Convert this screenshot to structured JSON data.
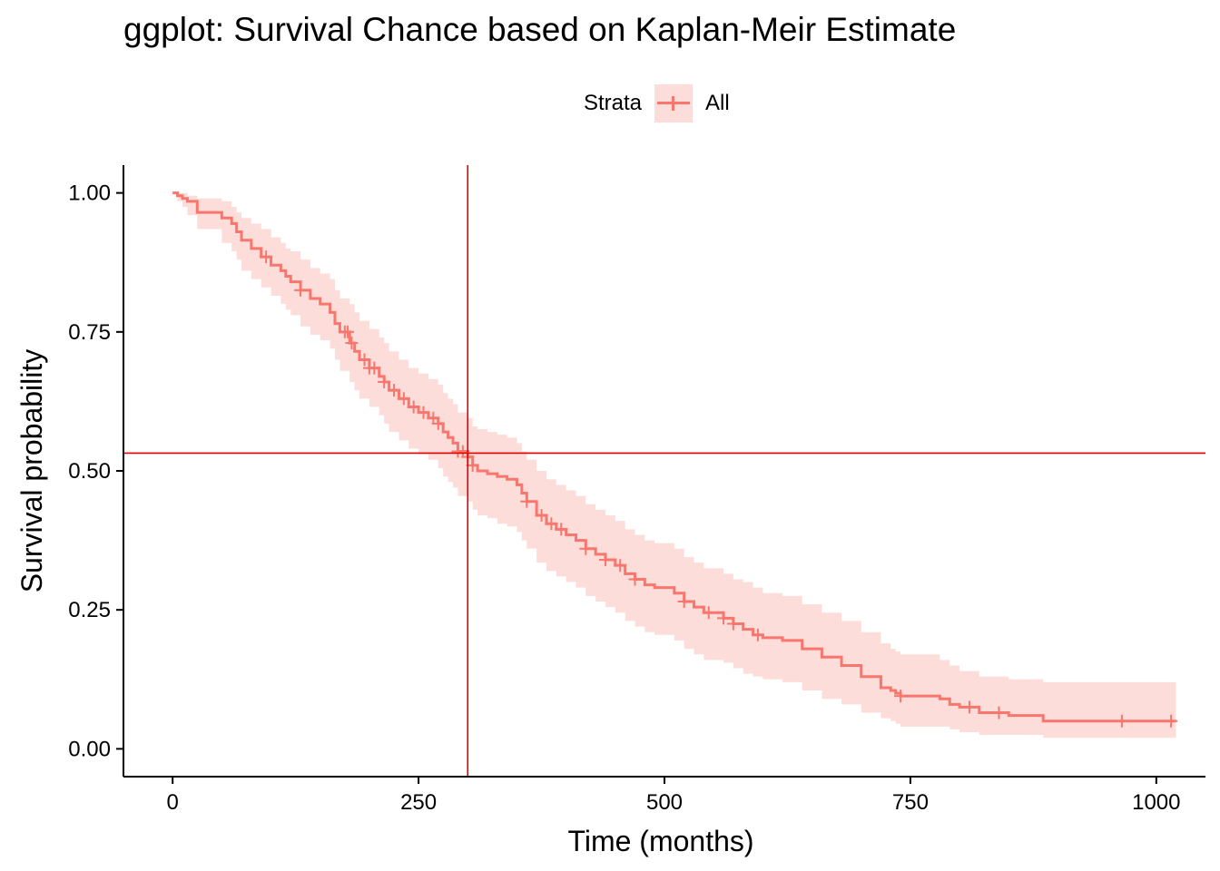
{
  "chart_data": {
    "type": "line",
    "subtype": "step",
    "title": "ggplot: Survival Chance based on Kaplan-Meir Estimate",
    "xlabel": "Time (months)",
    "ylabel": "Survival probability",
    "xlim": [
      -50,
      1050
    ],
    "ylim": [
      -0.05,
      1.05
    ],
    "x_ticks": [
      0,
      250,
      500,
      750,
      1000
    ],
    "x_tick_labels": [
      "0",
      "250",
      "500",
      "750",
      "1000"
    ],
    "y_ticks": [
      0,
      0.25,
      0.5,
      0.75,
      1.0
    ],
    "y_tick_labels": [
      "0.00",
      "0.25",
      "0.50",
      "0.75",
      "1.00"
    ],
    "grid": false,
    "legend": {
      "title": "Strata",
      "position": "top",
      "entries": [
        "All"
      ]
    },
    "colors": {
      "series": "#F8766D",
      "ribbon": "#F8766D40",
      "reference": "#E00000"
    },
    "series": [
      {
        "name": "All",
        "x": [
          0,
          5,
          10,
          15,
          25,
          50,
          60,
          65,
          70,
          80,
          90,
          100,
          110,
          115,
          120,
          130,
          140,
          150,
          160,
          165,
          170,
          180,
          185,
          190,
          200,
          210,
          215,
          220,
          230,
          240,
          250,
          260,
          270,
          275,
          280,
          285,
          290,
          300,
          305,
          310,
          320,
          330,
          340,
          350,
          355,
          360,
          370,
          380,
          390,
          400,
          410,
          420,
          430,
          440,
          450,
          460,
          470,
          480,
          490,
          500,
          510,
          520,
          530,
          540,
          560,
          570,
          580,
          590,
          600,
          620,
          640,
          660,
          680,
          700,
          720,
          730,
          735,
          740,
          780,
          790,
          800,
          820,
          850,
          880,
          885,
          900,
          950,
          1000,
          1020
        ],
        "y": [
          1.0,
          0.995,
          0.99,
          0.985,
          0.965,
          0.955,
          0.945,
          0.93,
          0.915,
          0.9,
          0.885,
          0.87,
          0.86,
          0.85,
          0.84,
          0.825,
          0.81,
          0.8,
          0.785,
          0.765,
          0.75,
          0.73,
          0.715,
          0.7,
          0.685,
          0.67,
          0.66,
          0.645,
          0.63,
          0.615,
          0.605,
          0.595,
          0.585,
          0.57,
          0.56,
          0.55,
          0.535,
          0.525,
          0.51,
          0.5,
          0.495,
          0.49,
          0.485,
          0.475,
          0.46,
          0.445,
          0.42,
          0.405,
          0.395,
          0.385,
          0.375,
          0.36,
          0.35,
          0.34,
          0.33,
          0.315,
          0.305,
          0.295,
          0.29,
          0.29,
          0.28,
          0.265,
          0.255,
          0.245,
          0.235,
          0.225,
          0.215,
          0.205,
          0.2,
          0.195,
          0.18,
          0.165,
          0.15,
          0.13,
          0.11,
          0.105,
          0.1,
          0.095,
          0.09,
          0.08,
          0.075,
          0.065,
          0.06,
          0.06,
          0.05,
          0.05,
          0.05,
          0.05,
          0.05
        ],
        "lower": [
          1.0,
          0.985,
          0.975,
          0.96,
          0.935,
          0.91,
          0.895,
          0.88,
          0.86,
          0.845,
          0.83,
          0.815,
          0.8,
          0.79,
          0.78,
          0.76,
          0.745,
          0.735,
          0.72,
          0.7,
          0.68,
          0.66,
          0.645,
          0.63,
          0.615,
          0.6,
          0.585,
          0.57,
          0.555,
          0.54,
          0.53,
          0.52,
          0.505,
          0.49,
          0.48,
          0.47,
          0.455,
          0.445,
          0.43,
          0.42,
          0.415,
          0.405,
          0.4,
          0.39,
          0.375,
          0.36,
          0.335,
          0.32,
          0.31,
          0.3,
          0.29,
          0.275,
          0.265,
          0.255,
          0.245,
          0.23,
          0.22,
          0.21,
          0.205,
          0.205,
          0.195,
          0.18,
          0.17,
          0.16,
          0.155,
          0.145,
          0.135,
          0.13,
          0.125,
          0.12,
          0.105,
          0.09,
          0.08,
          0.065,
          0.055,
          0.05,
          0.045,
          0.04,
          0.04,
          0.035,
          0.03,
          0.025,
          0.025,
          0.025,
          0.02,
          0.02,
          0.02,
          0.02,
          0.02
        ],
        "upper": [
          1.0,
          1.0,
          1.0,
          0.995,
          0.99,
          0.985,
          0.975,
          0.965,
          0.955,
          0.945,
          0.935,
          0.92,
          0.91,
          0.9,
          0.895,
          0.88,
          0.865,
          0.855,
          0.845,
          0.825,
          0.81,
          0.8,
          0.785,
          0.77,
          0.755,
          0.74,
          0.73,
          0.715,
          0.7,
          0.685,
          0.675,
          0.665,
          0.655,
          0.64,
          0.63,
          0.62,
          0.605,
          0.595,
          0.58,
          0.575,
          0.57,
          0.565,
          0.56,
          0.55,
          0.535,
          0.52,
          0.5,
          0.485,
          0.475,
          0.465,
          0.455,
          0.44,
          0.43,
          0.42,
          0.41,
          0.395,
          0.385,
          0.375,
          0.37,
          0.37,
          0.36,
          0.345,
          0.335,
          0.325,
          0.315,
          0.305,
          0.3,
          0.29,
          0.28,
          0.275,
          0.26,
          0.245,
          0.23,
          0.21,
          0.19,
          0.18,
          0.175,
          0.17,
          0.16,
          0.15,
          0.14,
          0.13,
          0.125,
          0.125,
          0.12,
          0.12,
          0.12,
          0.12,
          0.12
        ],
        "censored": [
          95,
          130,
          175,
          178,
          182,
          195,
          200,
          205,
          215,
          225,
          235,
          245,
          255,
          265,
          270,
          290,
          295,
          300,
          305,
          360,
          375,
          385,
          395,
          420,
          440,
          455,
          470,
          520,
          545,
          560,
          570,
          595,
          740,
          810,
          840,
          965,
          1015
        ]
      }
    ],
    "reference_lines": {
      "vertical_x": 300,
      "horizontal_y": 0.532
    }
  }
}
